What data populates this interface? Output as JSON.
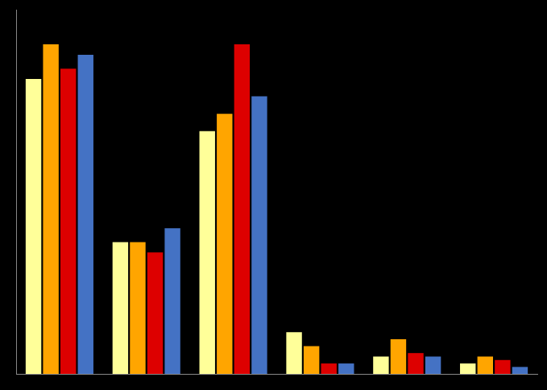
{
  "chart_data": {
    "type": "bar",
    "categories": [
      null,
      null,
      null,
      null,
      null,
      null
    ],
    "series": [
      {
        "color": "#FFFF99",
        "values": [
          85,
          38,
          70,
          12,
          5,
          3
        ]
      },
      {
        "color": "#FFA500",
        "values": [
          95,
          38,
          75,
          8,
          10,
          5
        ]
      },
      {
        "color": "#DD0000",
        "values": [
          88,
          35,
          95,
          3,
          6,
          4
        ]
      },
      {
        "color": "#4472C4",
        "values": [
          92,
          42,
          80,
          3,
          5,
          2
        ]
      }
    ],
    "ylim": [
      0,
      105
    ],
    "grid": false,
    "tick_labels": false
  }
}
